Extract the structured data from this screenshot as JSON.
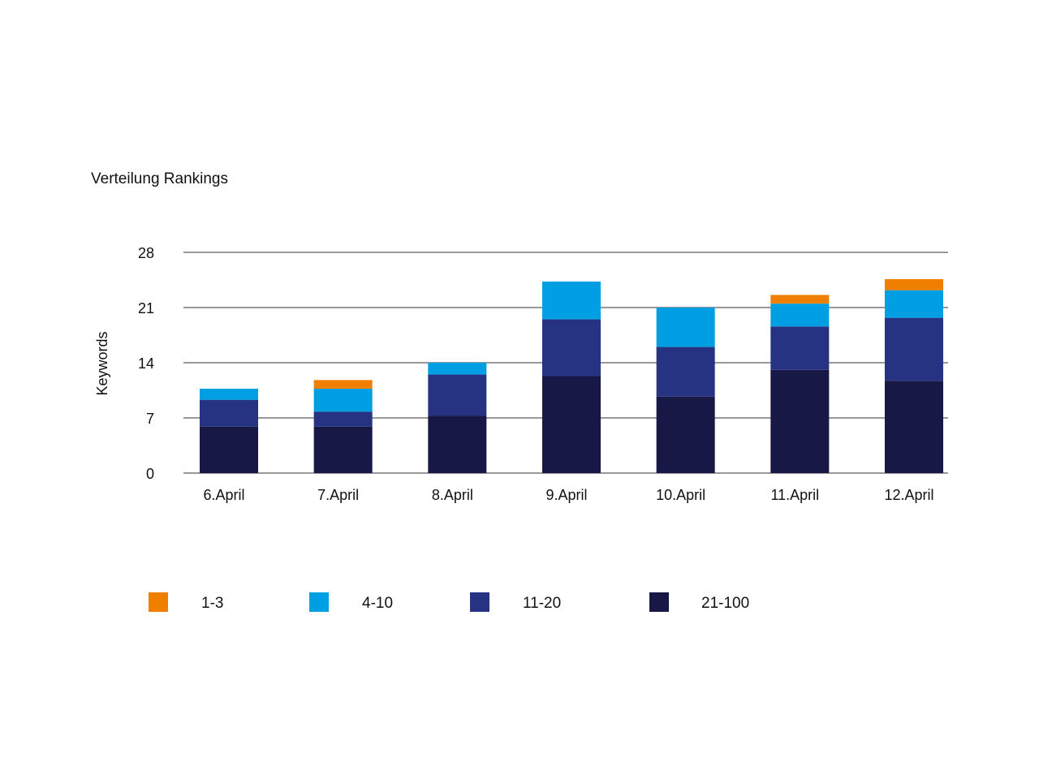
{
  "chart_data": {
    "type": "bar",
    "stacked": true,
    "title": "Verteilung Rankings",
    "xlabel": "",
    "ylabel": "Keywords",
    "ylim": [
      0,
      28
    ],
    "yticks": [
      0,
      7,
      14,
      21,
      28
    ],
    "grid": true,
    "legend_placement": "bottom",
    "categories": [
      "6.April",
      "7.April",
      "8.April",
      "9.April",
      "10.April",
      "11.April",
      "12.April"
    ],
    "series": [
      {
        "name": "21-100",
        "color": "#171846",
        "values": [
          5.9,
          5.9,
          7.3,
          12.3,
          9.7,
          13.1,
          11.7
        ]
      },
      {
        "name": "11-20",
        "color": "#263382",
        "values": [
          3.4,
          1.9,
          5.2,
          7.2,
          6.3,
          5.5,
          8.0
        ]
      },
      {
        "name": "4-10",
        "color": "#009fe3",
        "values": [
          1.4,
          2.9,
          1.5,
          4.8,
          5.0,
          2.9,
          3.5
        ]
      },
      {
        "name": "1-3",
        "color": "#f07f00",
        "values": [
          0,
          1.1,
          0,
          0,
          0,
          1.1,
          1.4
        ]
      }
    ],
    "legend_order": [
      "1-3",
      "4-10",
      "11-20",
      "21-100"
    ]
  }
}
